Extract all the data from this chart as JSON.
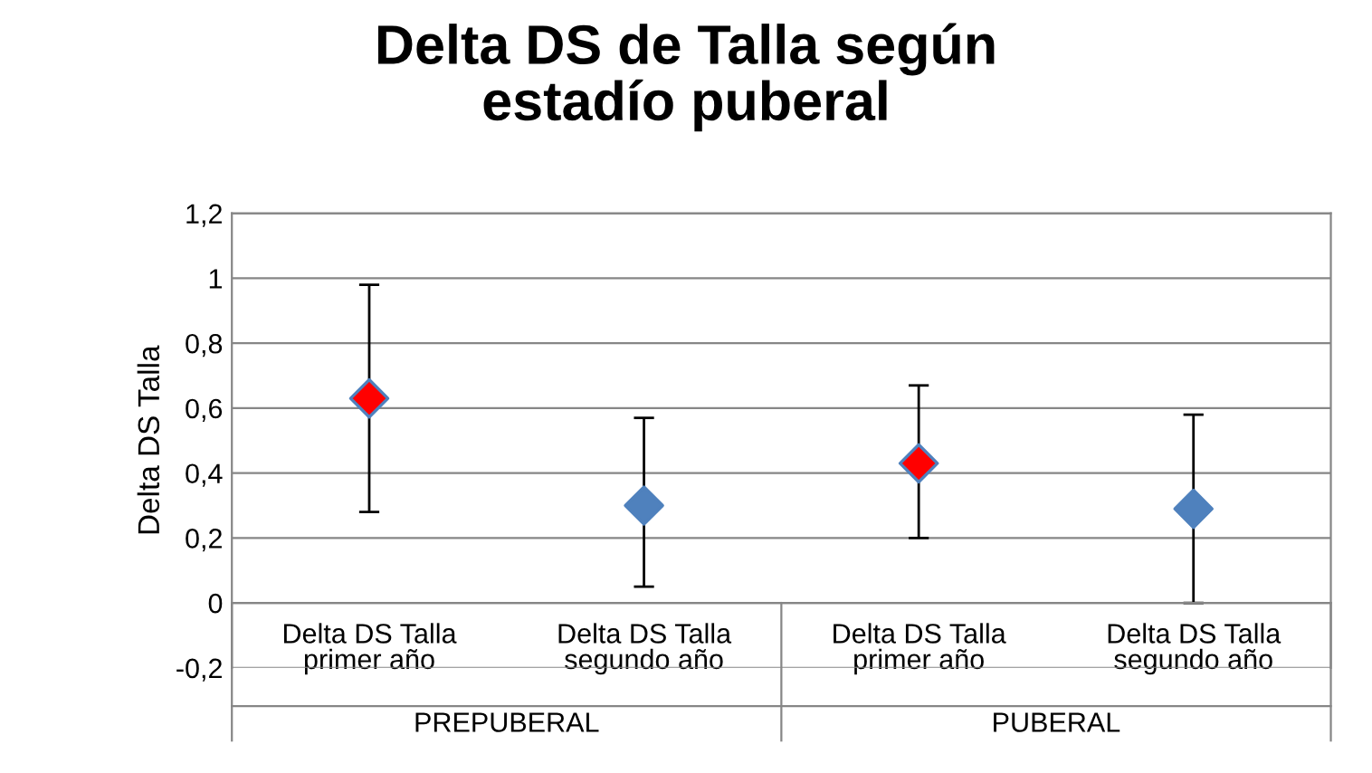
{
  "chart_data": {
    "type": "scatter",
    "title": "Delta DS de Talla según\nestadío puberal",
    "ylabel": "Delta DS Talla",
    "categories": [
      "Delta DS Talla\nprimer año",
      "Delta DS Talla\nsegundo año",
      "Delta DS Talla\nprimer año",
      "Delta DS Talla\nsegundo año"
    ],
    "values": [
      0.63,
      0.3,
      0.43,
      0.29
    ],
    "colors": [
      "#ff0000",
      "#4f81bd",
      "#ff0000",
      "#4f81bd"
    ],
    "errors": [
      [
        0.28,
        0.98
      ],
      [
        0.05,
        0.57
      ],
      [
        0.2,
        0.67
      ],
      [
        0.0,
        0.58
      ]
    ],
    "annotations": [
      "PREPUBERAL",
      "PUBERAL"
    ],
    "ylim": [
      -0.2,
      1.2
    ],
    "yticks": [
      {
        "value": -0.2,
        "label": "-0,2"
      },
      {
        "value": 0,
        "label": "0"
      },
      {
        "value": 0.2,
        "label": "0,2"
      },
      {
        "value": 0.4,
        "label": "0,4"
      },
      {
        "value": 0.6,
        "label": "0,6"
      },
      {
        "value": 0.8,
        "label": "0,8"
      },
      {
        "value": 1,
        "label": "1"
      },
      {
        "value": 1.2,
        "label": "1,2"
      }
    ],
    "grid": "y",
    "marker": "diamond"
  }
}
